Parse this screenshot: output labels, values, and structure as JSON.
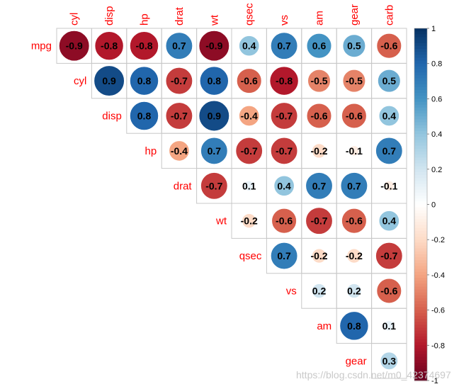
{
  "chart_data": {
    "type": "heatmap",
    "style": "correlation-circles-upper",
    "row_labels": [
      "mpg",
      "cyl",
      "disp",
      "hp",
      "drat",
      "wt",
      "qsec",
      "vs",
      "am",
      "gear"
    ],
    "col_labels": [
      "cyl",
      "disp",
      "hp",
      "drat",
      "wt",
      "qsec",
      "vs",
      "am",
      "gear",
      "carb"
    ],
    "values": [
      [
        "-0.9",
        "-0.8",
        "-0.8",
        "0.7",
        "-0.9",
        "0.4",
        "0.7",
        "0.6",
        "0.5",
        "-0.6"
      ],
      [
        "0.9",
        "0.8",
        "-0.7",
        "0.8",
        "-0.6",
        "-0.8",
        "-0.5",
        "-0.5",
        "0.5"
      ],
      [
        "0.8",
        "-0.7",
        "0.9",
        "-0.4",
        "-0.7",
        "-0.6",
        "-0.6",
        "0.4"
      ],
      [
        "-0.4",
        "0.7",
        "-0.7",
        "-0.7",
        "-0.2",
        "-0.1",
        "0.7"
      ],
      [
        "-0.7",
        "0.1",
        "0.4",
        "0.7",
        "0.7",
        "-0.1"
      ],
      [
        "-0.2",
        "-0.6",
        "-0.7",
        "-0.6",
        "0.4"
      ],
      [
        "0.7",
        "-0.2",
        "-0.2",
        "-0.7"
      ],
      [
        "0.2",
        "0.2",
        "-0.6"
      ],
      [
        "0.8",
        "0.1"
      ],
      [
        "0.3"
      ]
    ],
    "colorbar": {
      "range": [
        -1,
        1
      ],
      "ticks": [
        "1",
        "0.8",
        "0.6",
        "0.4",
        "0.2",
        "0",
        "-0.2",
        "-0.4",
        "-0.6",
        "-0.8",
        "-1"
      ],
      "low_color": "#67001f",
      "mid_color": "#ffffff",
      "high_color": "#053061"
    }
  },
  "watermark": "https://blog.csdn.net/m0_42374697"
}
